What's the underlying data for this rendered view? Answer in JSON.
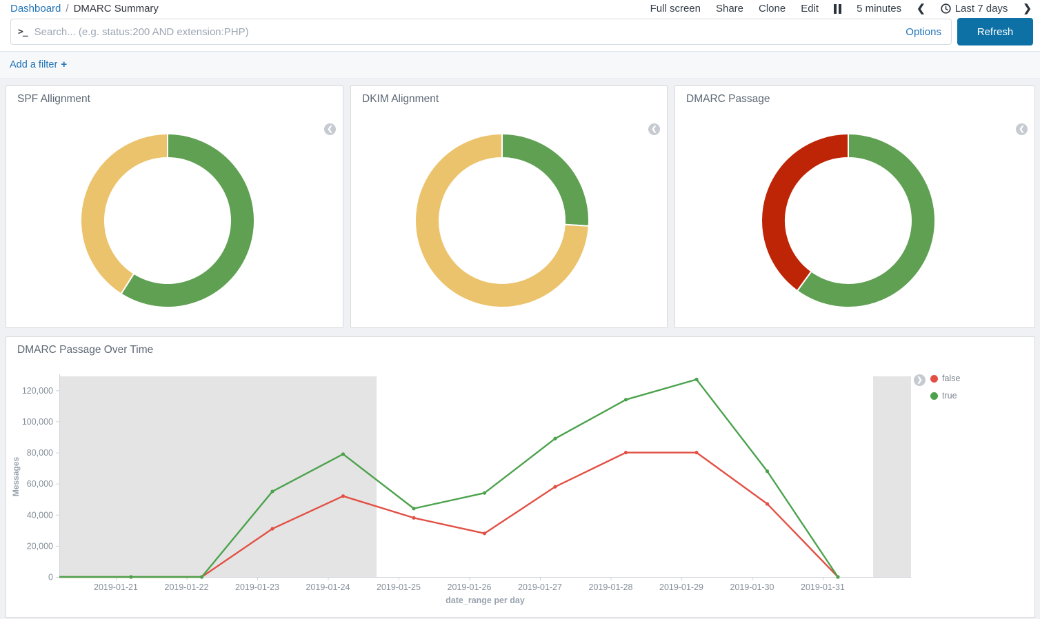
{
  "header": {
    "breadcrumb": {
      "link": "Dashboard",
      "separator": "/",
      "current": "DMARC Summary"
    },
    "menu": [
      "Full screen",
      "Share",
      "Clone",
      "Edit"
    ],
    "refresh_interval": "5 minutes",
    "time_range": "Last 7 days"
  },
  "search": {
    "placeholder": "Search... (e.g. status:200 AND extension:PHP)",
    "options_label": "Options",
    "refresh_label": "Refresh"
  },
  "filter_bar": {
    "add_filter_label": "Add a filter"
  },
  "icons": {
    "search_prompt": ">_",
    "prev_chevron": "❮",
    "next_chevron": "❯",
    "legend_collapse": "❮",
    "legend_expand": "❯",
    "add_plus": "+"
  },
  "colors": {
    "link_blue": "#2173B8",
    "refresh_button_blue": "#0E71A6",
    "donut_green": "#5FA052",
    "donut_yellow": "#ECC36D",
    "donut_red": "#BE2507",
    "line_true_green": "#4CA24C",
    "line_false_red": "#E25045",
    "shaded_region_gray": "#E4E4E4",
    "axis_line": "#CFD5DA",
    "tick_text": "#848E99",
    "axis_title_text": "#98A2AD"
  },
  "chart_data": [
    {
      "type": "pie",
      "title": "SPF Allignment",
      "donut": true,
      "segments": [
        {
          "label": "green",
          "fraction": 0.59,
          "color": "#5FA052"
        },
        {
          "label": "yellow",
          "fraction": 0.41,
          "color": "#ECC36D"
        }
      ]
    },
    {
      "type": "pie",
      "title": "DKIM Alignment",
      "donut": true,
      "segments": [
        {
          "label": "green",
          "fraction": 0.26,
          "color": "#5FA052"
        },
        {
          "label": "yellow",
          "fraction": 0.74,
          "color": "#ECC36D"
        }
      ]
    },
    {
      "type": "pie",
      "title": "DMARC Passage",
      "donut": true,
      "segments": [
        {
          "label": "green",
          "fraction": 0.6,
          "color": "#5FA052"
        },
        {
          "label": "red",
          "fraction": 0.4,
          "color": "#BE2507"
        }
      ]
    },
    {
      "type": "line",
      "title": "DMARC Passage Over Time",
      "x": [
        "2019-01-21",
        "2019-01-22",
        "2019-01-23",
        "2019-01-24",
        "2019-01-25",
        "2019-01-26",
        "2019-01-27",
        "2019-01-28",
        "2019-01-29",
        "2019-01-30",
        "2019-01-31"
      ],
      "series": [
        {
          "name": "false",
          "color": "#E25045",
          "values": [
            0,
            0,
            31000,
            52000,
            38000,
            28000,
            58000,
            80000,
            80000,
            47000,
            0
          ]
        },
        {
          "name": "true",
          "color": "#4CA24C",
          "values": [
            0,
            0,
            55000,
            79000,
            44000,
            54000,
            89000,
            114000,
            127000,
            68000,
            0
          ]
        }
      ],
      "xlabel": "date_range per day",
      "ylabel": "Messages",
      "ylim": [
        0,
        129000
      ],
      "yticks": [
        0,
        20000,
        40000,
        60000,
        80000,
        100000,
        120000
      ],
      "grid": false,
      "legend_position": "right",
      "shaded_regions": [
        {
          "from": 0.0,
          "to": 0.3725
        },
        {
          "from": 0.9555,
          "to": 1.0
        }
      ]
    }
  ]
}
